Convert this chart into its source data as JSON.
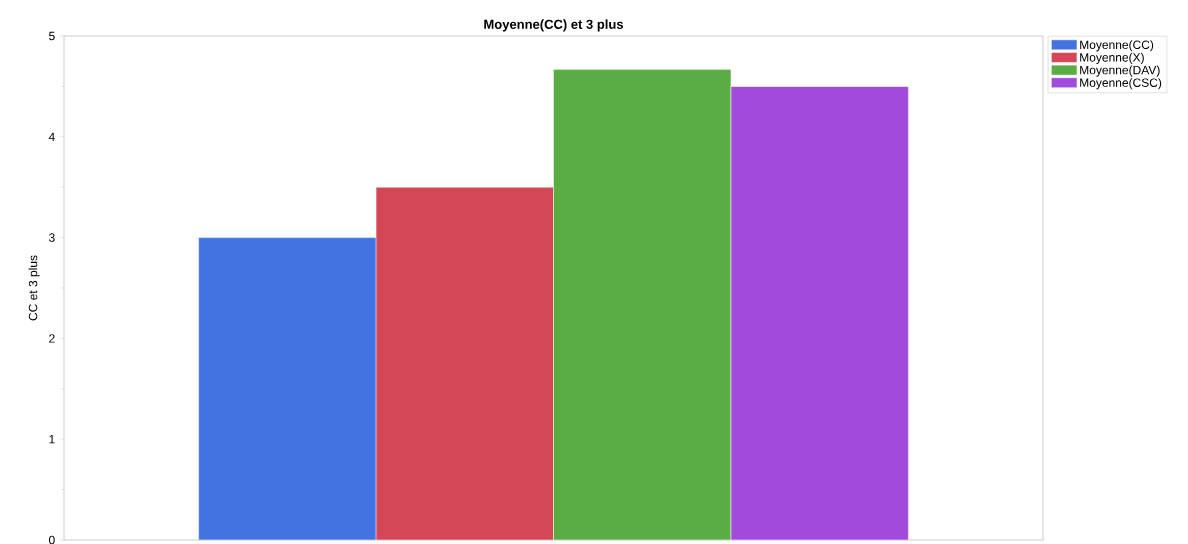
{
  "chart_data": {
    "type": "bar",
    "title": "Moyenne(CC) et 3 plus",
    "ylabel": "CC et 3 plus",
    "categories": [
      null
    ],
    "series": [
      {
        "name": "Moyenne(CC)",
        "color": "#4373e0",
        "values": [
          3.0
        ]
      },
      {
        "name": "Moyenne(X)",
        "color": "#d34756",
        "values": [
          3.5
        ]
      },
      {
        "name": "Moyenne(DAV)",
        "color": "#5aad42",
        "values": [
          4.67
        ]
      },
      {
        "name": "Moyenne(CSC)",
        "color": "#a04bdc",
        "values": [
          4.5
        ]
      }
    ],
    "ylim": [
      0,
      5
    ],
    "yticks": [
      0,
      1,
      2,
      3,
      4,
      5
    ],
    "legend": "top right"
  }
}
